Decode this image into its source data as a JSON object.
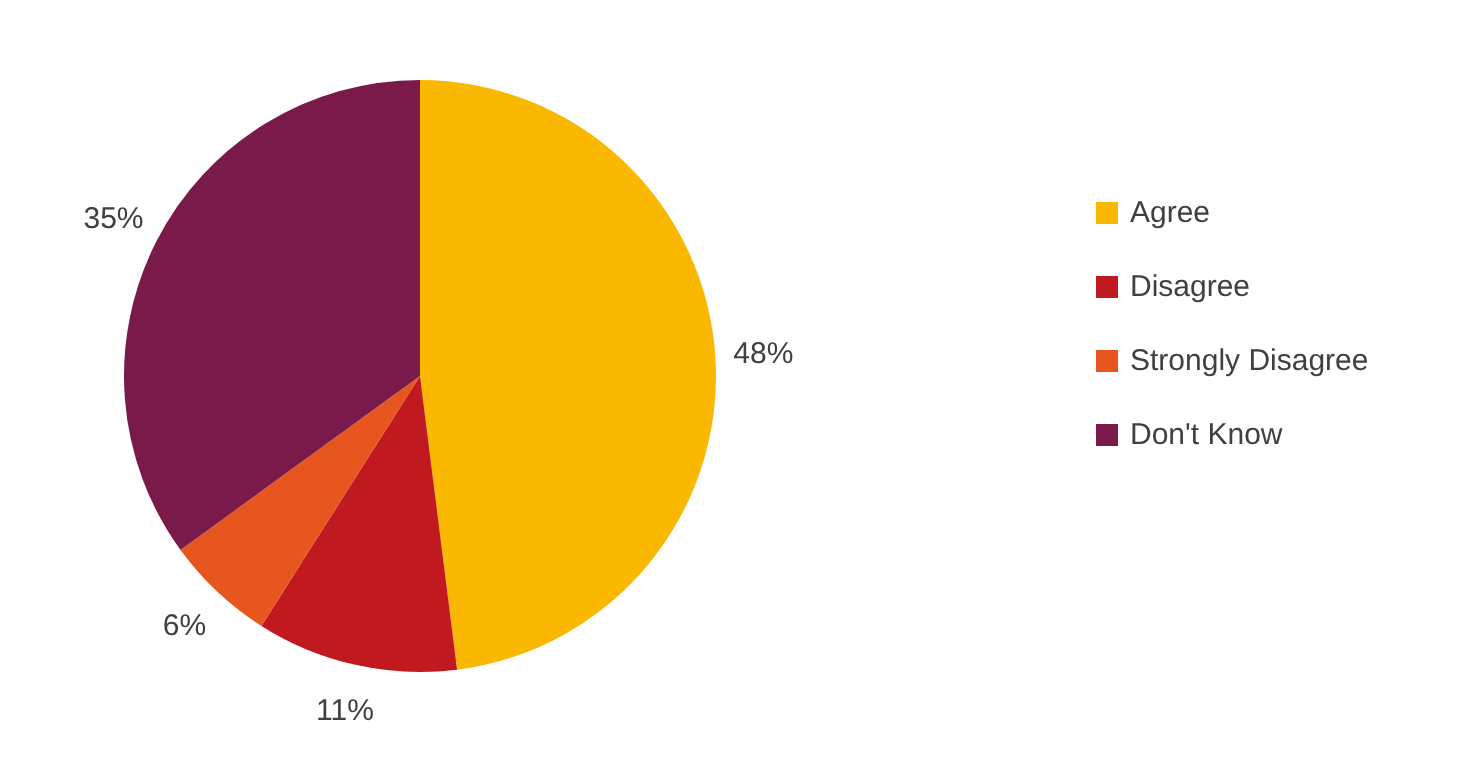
{
  "chart_data": {
    "type": "pie",
    "categories": [
      "Agree",
      "Disagree",
      "Strongly Disagree",
      "Don't Know"
    ],
    "values": [
      48,
      11,
      6,
      35
    ],
    "colors": [
      "#fbb800",
      "#c0191f",
      "#e85620",
      "#7a1a4a"
    ],
    "value_labels": [
      "48%",
      "11%",
      "6%",
      "35%"
    ],
    "legend": "right"
  }
}
